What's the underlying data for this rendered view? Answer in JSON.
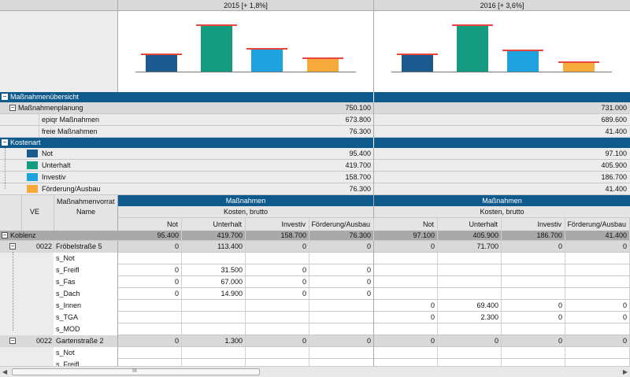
{
  "years": [
    {
      "label": "2015 [+ 1,8%]",
      "bars": [
        0.36,
        1.0,
        0.49,
        0.27
      ]
    },
    {
      "label": "2016 [+ 3,6%]",
      "bars": [
        0.36,
        1.0,
        0.45,
        0.19
      ]
    }
  ],
  "colors": {
    "not": "#1a5a8f",
    "unterhalt": "#159b7f",
    "investiv": "#1ea2dd",
    "foerderung": "#f6aa3a",
    "accent": "#0f5a8c",
    "target": "#e8453c"
  },
  "summary": {
    "overview_label": "Maßnahmenübersicht",
    "planning_label": "Maßnahmenplanung",
    "planning_2015": "750.100",
    "planning_2016": "731.000",
    "epiqr_label": "epiqr Maßnahmen",
    "epiqr_2015": "673.800",
    "epiqr_2016": "689.600",
    "free_label": "freie Maßnahmen",
    "free_2015": "76.300",
    "free_2016": "41.400"
  },
  "kostenart": {
    "label": "Kostenart",
    "items": [
      {
        "label": "Not",
        "v2015": "95.400",
        "v2016": "97.100"
      },
      {
        "label": "Unterhalt",
        "v2015": "419.700",
        "v2016": "405.900"
      },
      {
        "label": "Investiv",
        "v2015": "158.700",
        "v2016": "186.700"
      },
      {
        "label": "Förderung/Ausbau",
        "v2015": "76.300",
        "v2016": "41.400"
      }
    ]
  },
  "grid_header": {
    "ve": "VE",
    "vorrat": "Maßnahmenvorrat",
    "name": "Name",
    "massnahmen": "Maßnahmen",
    "kosten": "Kosten, brutto",
    "cols": [
      "Not",
      "Unterhalt",
      "Investiv",
      "Förderung/Ausbau"
    ]
  },
  "koblenz": {
    "label": "Koblenz",
    "v2015": [
      "95.400",
      "419.700",
      "158.700",
      "76.300"
    ],
    "v2016": [
      "97.100",
      "405.900",
      "186.700",
      "41.400"
    ]
  },
  "rows": [
    {
      "type": "group",
      "ve": "0022",
      "name": "Fröbelstraße 5",
      "v2015": [
        "0",
        "113.400",
        "0",
        "0"
      ],
      "v2016": [
        "0",
        "71.700",
        "0",
        "0"
      ]
    },
    {
      "type": "item",
      "name": "s_Not",
      "v2015": [
        "",
        "",
        "",
        ""
      ],
      "v2016": [
        "",
        "",
        "",
        ""
      ]
    },
    {
      "type": "item",
      "name": "s_Freifl",
      "v2015": [
        "0",
        "31.500",
        "0",
        "0"
      ],
      "v2016": [
        "",
        "",
        "",
        ""
      ]
    },
    {
      "type": "item",
      "name": "s_Fas",
      "v2015": [
        "0",
        "67.000",
        "0",
        "0"
      ],
      "v2016": [
        "",
        "",
        "",
        ""
      ]
    },
    {
      "type": "item",
      "name": "s_Dach",
      "v2015": [
        "0",
        "14.900",
        "0",
        "0"
      ],
      "v2016": [
        "",
        "",
        "",
        ""
      ]
    },
    {
      "type": "item",
      "name": "s_Innen",
      "v2015": [
        "",
        "",
        "",
        ""
      ],
      "v2016": [
        "0",
        "69.400",
        "0",
        "0"
      ]
    },
    {
      "type": "item",
      "name": "s_TGA",
      "v2015": [
        "",
        "",
        "",
        ""
      ],
      "v2016": [
        "0",
        "2.300",
        "0",
        "0"
      ]
    },
    {
      "type": "item",
      "name": "s_MOD",
      "v2015": [
        "",
        "",
        "",
        ""
      ],
      "v2016": [
        "",
        "",
        "",
        ""
      ]
    },
    {
      "type": "group",
      "ve": "0022",
      "name": "Gartenstraße 2",
      "v2015": [
        "0",
        "1.300",
        "0",
        "0"
      ],
      "v2016": [
        "0",
        "0",
        "0",
        "0"
      ]
    },
    {
      "type": "item",
      "name": "s_Not",
      "v2015": [
        "",
        "",
        "",
        ""
      ],
      "v2016": [
        "",
        "",
        "",
        ""
      ]
    },
    {
      "type": "item",
      "name": "s_Freifl",
      "v2015": [
        "",
        "",
        "",
        ""
      ],
      "v2016": [
        "",
        "",
        "",
        ""
      ]
    }
  ],
  "scrollbar": {
    "grip": "III"
  }
}
